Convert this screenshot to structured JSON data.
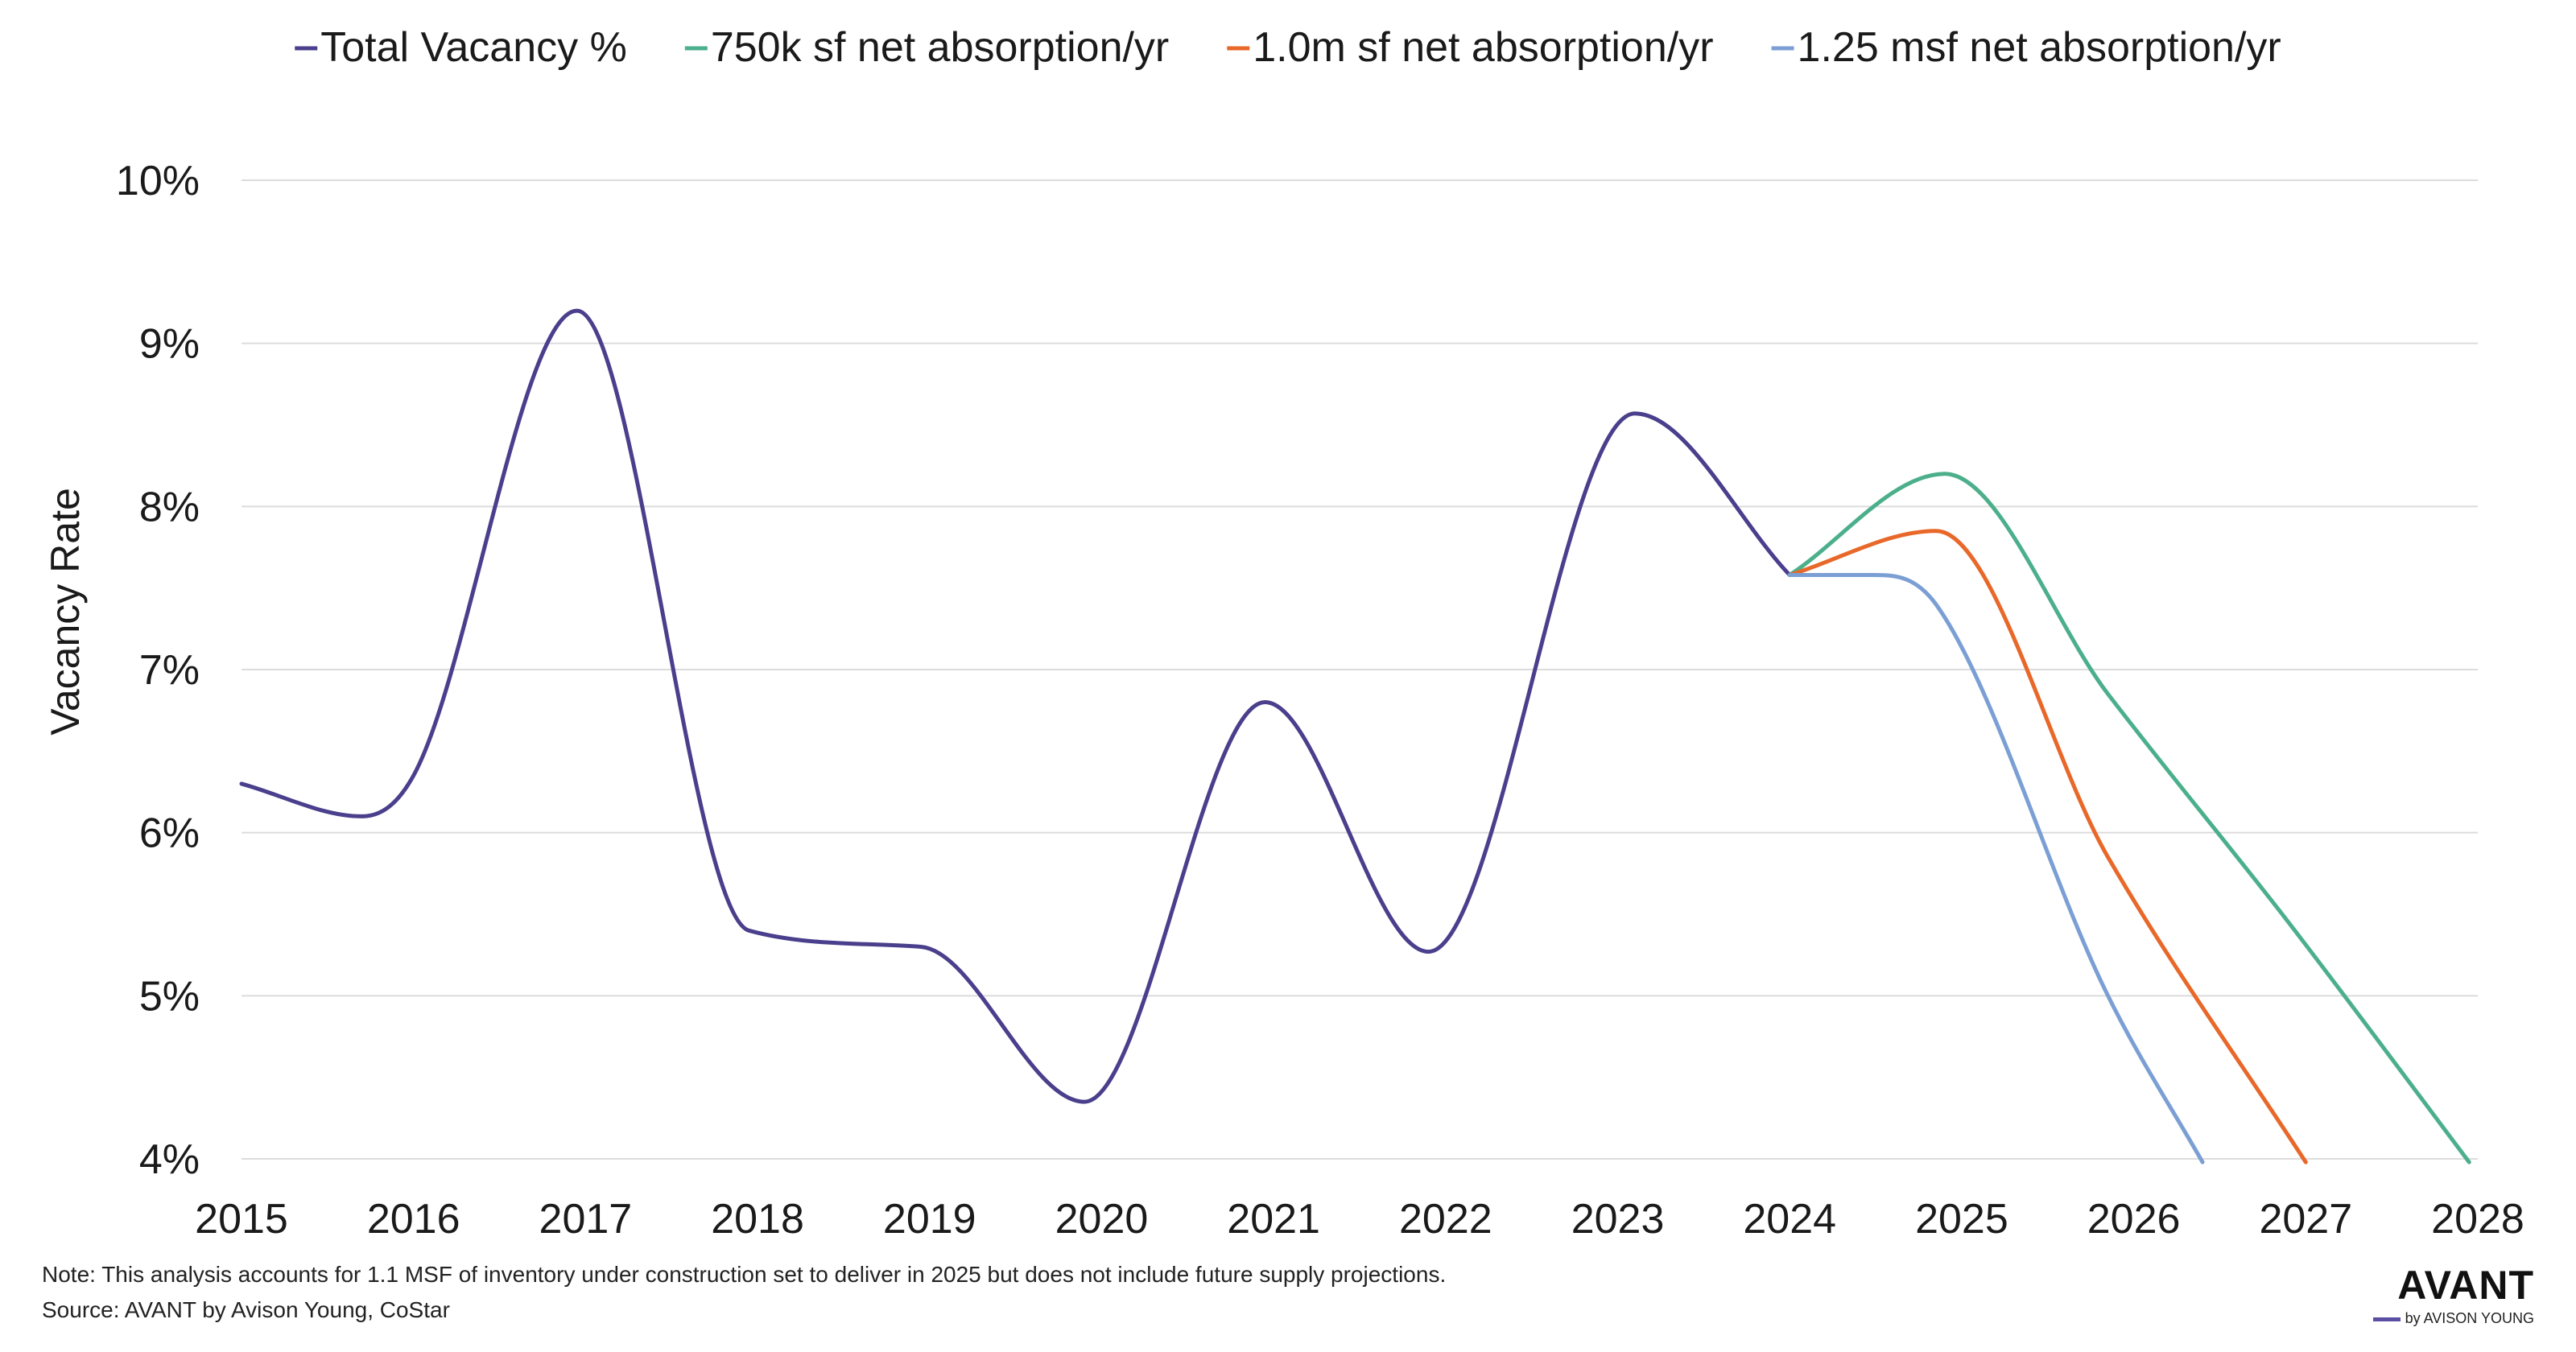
{
  "chart_data": {
    "type": "line",
    "title": "",
    "xlabel": "",
    "ylabel": "Vacancy Rate",
    "x_ticks": [
      "2015",
      "2016",
      "2017",
      "2018",
      "2019",
      "2020",
      "2021",
      "2022",
      "2023",
      "2024",
      "2025",
      "2026",
      "2027",
      "2028"
    ],
    "xlim": [
      2015,
      2028
    ],
    "ylim": [
      4,
      10
    ],
    "y_ticks": [
      "4%",
      "5%",
      "6%",
      "7%",
      "8%",
      "9%",
      "10%"
    ],
    "y_tick_values": [
      4,
      5,
      6,
      7,
      8,
      9,
      10
    ],
    "grid": "horizontal",
    "legend_position": "top",
    "series": [
      {
        "name": "Total Vacancy %",
        "color": "#4a3f8c",
        "x": [
          2015.0,
          2015.7,
          2016.0,
          2016.95,
          2017.95,
          2018.95,
          2019.9,
          2020.95,
          2021.9,
          2023.1,
          2024.0
        ],
        "y": [
          6.3,
          6.1,
          6.35,
          9.2,
          5.4,
          5.3,
          4.35,
          6.8,
          5.27,
          8.57,
          7.58
        ]
      },
      {
        "name": "750k sf net absorption/yr",
        "color": "#4caf8c",
        "x": [
          2024.0,
          2024.9,
          2025.85,
          2026.9,
          2027.95
        ],
        "y": [
          7.58,
          8.2,
          6.85,
          5.45,
          3.98
        ]
      },
      {
        "name": "1.0m sf net absorption/yr",
        "color": "#e8682a",
        "x": [
          2024.0,
          2024.85,
          2025.85,
          2027.0
        ],
        "y": [
          7.58,
          7.85,
          5.85,
          3.98
        ]
      },
      {
        "name": "1.25 msf net absorption/yr",
        "color": "#7b9fd4",
        "x": [
          2024.0,
          2024.5,
          2024.85,
          2025.85,
          2026.4
        ],
        "y": [
          7.58,
          7.58,
          7.4,
          5.0,
          3.98
        ]
      }
    ]
  },
  "notes": {
    "note": "Note: This analysis accounts for 1.1 MSF of inventory under construction set to deliver in 2025 but does not include future supply projections.",
    "source": "Source: AVANT by Avison Young, CoStar"
  },
  "logo": {
    "main": "AVANT",
    "sub": "by AVISON YOUNG",
    "accent": "#5a4fa3"
  }
}
